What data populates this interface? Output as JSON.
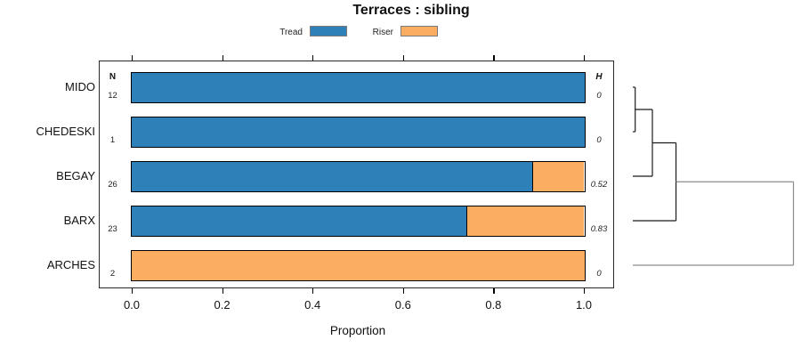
{
  "title": "Terraces : sibling",
  "legend": {
    "items": [
      {
        "label": "Tread",
        "color": "#2E80B9"
      },
      {
        "label": "Riser",
        "color": "#FBAD62"
      }
    ]
  },
  "columns": {
    "n_header": "N",
    "h_header": "H"
  },
  "axis": {
    "label": "Proportion",
    "ticks": [
      "0.0",
      "0.2",
      "0.4",
      "0.6",
      "0.8",
      "1.0"
    ],
    "tick_values": [
      0,
      0.2,
      0.4,
      0.6,
      0.8,
      1.0
    ],
    "range": [
      0,
      1
    ]
  },
  "rows": [
    {
      "label": "MIDO",
      "n": "12",
      "h": "0",
      "tread": 1.0,
      "riser": 0.0
    },
    {
      "label": "CHEDESKI",
      "n": "1",
      "h": "0",
      "tread": 1.0,
      "riser": 0.0
    },
    {
      "label": "BEGAY",
      "n": "26",
      "h": "0.52",
      "tread": 0.885,
      "riser": 0.115
    },
    {
      "label": "BARX",
      "n": "23",
      "h": "0.83",
      "tread": 0.739,
      "riser": 0.261
    },
    {
      "label": "ARCHES",
      "n": "2",
      "h": "0",
      "tread": 0.0,
      "riser": 1.0
    }
  ],
  "chart_data": {
    "type": "bar",
    "orientation": "horizontal-stacked",
    "title": "Terraces : sibling",
    "categories": [
      "MIDO",
      "CHEDESKI",
      "BEGAY",
      "BARX",
      "ARCHES"
    ],
    "series": [
      {
        "name": "Tread",
        "color": "#2E80B9",
        "values": [
          1.0,
          1.0,
          0.885,
          0.739,
          0.0
        ]
      },
      {
        "name": "Riser",
        "color": "#FBAD62",
        "values": [
          0.0,
          0.0,
          0.115,
          0.261,
          1.0
        ]
      }
    ],
    "n_values": [
      12,
      1,
      26,
      23,
      2
    ],
    "h_values": [
      0,
      0,
      0.52,
      0.83,
      0
    ],
    "xlabel": "Proportion",
    "xlim": [
      0,
      1
    ],
    "xticks": [
      0.0,
      0.2,
      0.4,
      0.6,
      0.8,
      1.0
    ],
    "grid": false,
    "legend_position": "top-center",
    "bar_border_color": "#000000",
    "dendrogram": {
      "side": "right",
      "leaves": [
        "MIDO",
        "CHEDESKI",
        "BEGAY",
        "BARX",
        "ARCHES"
      ],
      "merges": [
        {
          "a": "MIDO",
          "b": "CHEDESKI",
          "height": 0.015,
          "color": "#1b1b1b"
        },
        {
          "a": "cluster-0",
          "b": "BEGAY",
          "height": 0.122,
          "color": "#1b1b1b"
        },
        {
          "a": "cluster-1",
          "b": "BARX",
          "height": 0.269,
          "color": "#1b1b1b"
        },
        {
          "a": "cluster-2",
          "b": "ARCHES",
          "height": 1.0,
          "color": "#8a8a8a"
        }
      ]
    }
  }
}
